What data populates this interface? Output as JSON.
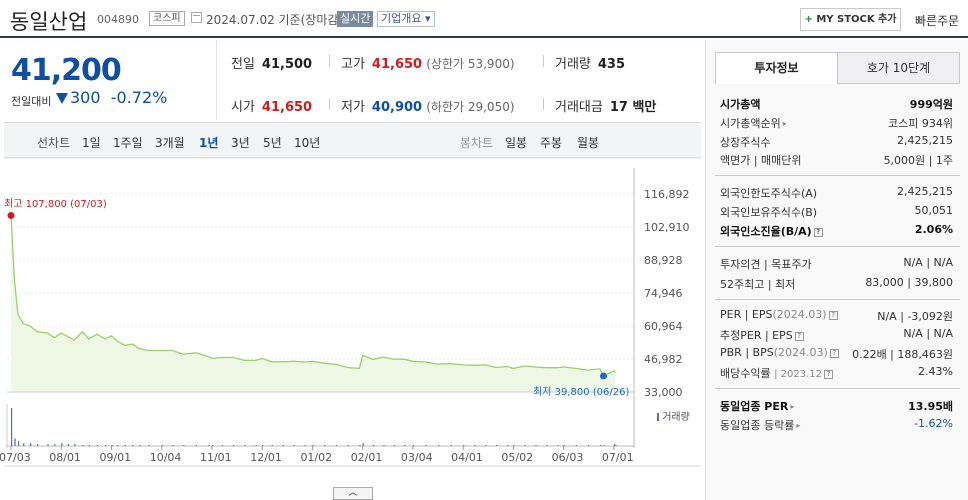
{
  "header": {
    "stock_name": "동일산업",
    "stock_code": "004890",
    "market": "코스피",
    "date": "2024.07.02 기준(장마감)",
    "realtime_label": "실시간",
    "company_overview": "기업개요",
    "mystock_plus": "+",
    "mystock_label": "MY STOCK 추가",
    "quick_order": "빠른주문"
  },
  "summary": {
    "current_price": "41,200",
    "change_label": "전일대비",
    "change": "300",
    "change_pct": "-0.72%",
    "prev_close_label": "전일",
    "prev_close": "41,500",
    "high_label": "고가",
    "high": "41,650",
    "upper_limit": "(상한가 53,900)",
    "volume_label": "거래량",
    "volume": "435",
    "open_label": "시가",
    "open": "41,650",
    "low_label": "저가",
    "low": "40,900",
    "lower_limit": "(하한가 29,050)",
    "amount_label": "거래대금",
    "amount": "17 백만"
  },
  "period_bar": {
    "line_label": "선차트",
    "line_periods": [
      "1일",
      "1주일",
      "3개월",
      "1년",
      "3년",
      "5년",
      "10년"
    ],
    "active_period": "1년",
    "candle_label": "봉차트",
    "candle_periods": [
      "일봉",
      "주봉",
      "월봉"
    ]
  },
  "chart_data": {
    "type": "line",
    "y_ticks": [
      "116,892",
      "102,910",
      "88,928",
      "74,946",
      "60,964",
      "46,982",
      "33,000"
    ],
    "ylim": [
      33000,
      116892
    ],
    "x_ticks": [
      "07/03",
      "08/01",
      "09/01",
      "10/04",
      "11/01",
      "12/01",
      "01/02",
      "02/01",
      "03/04",
      "04/01",
      "05/02",
      "06/03",
      "07/01"
    ],
    "high_annotation": "최고 107,800 (07/03)",
    "low_annotation": "최저 39,800 (06/26)",
    "volume_legend": "거래량",
    "line_color": "#9bd06a",
    "fill_color": "#eef8e4",
    "high_color": "#d01c1c",
    "low_color": "#1a6ac9",
    "series": [
      {
        "x": [
          "07/03",
          "07/05",
          "07/07",
          "07/10",
          "07/14",
          "07/18",
          "07/24",
          "07/28",
          "08/01",
          "08/05",
          "08/09",
          "08/14",
          "08/18",
          "08/23",
          "08/28",
          "09/01",
          "09/05",
          "09/10",
          "09/15",
          "09/20",
          "09/26",
          "10/04",
          "10/10",
          "10/16",
          "10/23",
          "10/30",
          "11/01",
          "11/07",
          "11/14",
          "11/21",
          "11/28",
          "12/01",
          "12/07",
          "12/14",
          "12/21",
          "12/28",
          "01/02",
          "01/09",
          "01/16",
          "01/23",
          "01/30",
          "02/01",
          "02/08",
          "02/15",
          "02/22",
          "02/29",
          "03/04",
          "03/11",
          "03/18",
          "03/25",
          "04/01",
          "04/08",
          "04/15",
          "04/22",
          "04/29",
          "05/02",
          "05/09",
          "05/16",
          "05/23",
          "05/30",
          "06/03",
          "06/10",
          "06/17",
          "06/24",
          "06/26",
          "07/01",
          "07/02"
        ],
        "values": [
          107800,
          80000,
          66000,
          62000,
          61000,
          58500,
          58000,
          56000,
          58000,
          56500,
          55000,
          58500,
          55500,
          57500,
          55500,
          56800,
          54500,
          52800,
          53300,
          51300,
          50600,
          50600,
          50600,
          49000,
          49600,
          48000,
          47200,
          47600,
          47600,
          46400,
          46400,
          47200,
          45800,
          45800,
          46000,
          45700,
          46000,
          45200,
          44700,
          43400,
          43000,
          48500,
          46800,
          47800,
          46900,
          46900,
          46000,
          45700,
          44800,
          45000,
          44500,
          44300,
          44500,
          43400,
          43800,
          43000,
          44000,
          43600,
          43300,
          43300,
          43600,
          43000,
          42300,
          42800,
          39800,
          42000,
          41200
        ]
      }
    ],
    "volume_values": [
      40,
      8,
      5,
      3,
      3,
      2,
      2,
      2,
      3,
      2,
      2,
      1,
      1,
      1,
      1,
      1,
      1,
      1,
      1,
      1,
      1,
      1,
      1,
      1,
      1,
      1,
      1,
      1,
      1,
      1,
      1,
      1,
      1,
      1,
      1,
      1,
      1,
      1,
      1,
      1,
      1,
      3,
      1,
      1,
      1,
      1,
      1,
      1,
      1,
      1,
      1,
      1,
      1,
      1,
      1,
      1,
      1,
      1,
      1,
      1,
      1,
      1,
      1,
      1,
      1,
      2,
      1
    ]
  },
  "panel": {
    "tab_active": "투자정보",
    "tab_other": "호가 10단계",
    "market_cap_label": "시가총액",
    "market_cap": "999억원",
    "market_cap_rank_label": "시가총액순위",
    "market_cap_rank": "코스피 934위",
    "shares_label": "상장주식수",
    "shares": "2,425,215",
    "par_label": "액면가 | 매매단위",
    "par": "5,000원 | 1주",
    "foreign_limit_label": "외국인한도주식수(A)",
    "foreign_limit": "2,425,215",
    "foreign_hold_label": "외국인보유주식수(B)",
    "foreign_hold": "50,051",
    "foreign_ratio_label": "외국인소진율(B/A)",
    "foreign_ratio": "2.06%",
    "opinion_label": "투자의견 | 목표주가",
    "opinion": "N/A | N/A",
    "week52_label": "52주최고 | 최저",
    "week52": "83,000 | 39,800",
    "per_eps_label": "PER | EPS",
    "per_eps_period": "(2024.03)",
    "per_eps": "N/A | -3,092원",
    "est_per_label": "추정PER | EPS",
    "est_per": "N/A | N/A",
    "pbr_bps_label": "PBR | BPS",
    "pbr_bps_period": "(2024.03)",
    "pbr_bps": "0.22배 | 188,463원",
    "dividend_label": "배당수익률",
    "dividend_period": "2023.12",
    "dividend": "2.43%",
    "sector_per_label": "동일업종 PER",
    "sector_per": "13.95배",
    "sector_change_label": "동일업종 등락률",
    "sector_change": "-1.62%"
  }
}
